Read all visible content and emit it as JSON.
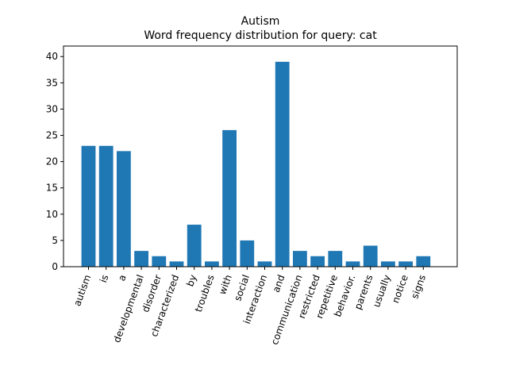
{
  "chart_data": {
    "type": "bar",
    "title": "Autism",
    "subtitle": "Word frequency distribution for query: cat",
    "xlabel": "",
    "ylabel": "",
    "ylim": [
      0,
      42
    ],
    "yticks": [
      0,
      5,
      10,
      15,
      20,
      25,
      30,
      35,
      40
    ],
    "grid": false,
    "categories": [
      "autism",
      "is",
      "a",
      "developmental",
      "disorder",
      "characterized",
      "by",
      "troubles",
      "with",
      "social",
      "interaction",
      "and",
      "communication",
      "restricted",
      "repetitive",
      "behavior.",
      "parents",
      "usually",
      "notice",
      "signs"
    ],
    "values": [
      23,
      23,
      22,
      3,
      2,
      1,
      8,
      1,
      26,
      5,
      1,
      39,
      3,
      2,
      3,
      1,
      4,
      1,
      1,
      2
    ],
    "bar_color": "#1f77b4"
  }
}
